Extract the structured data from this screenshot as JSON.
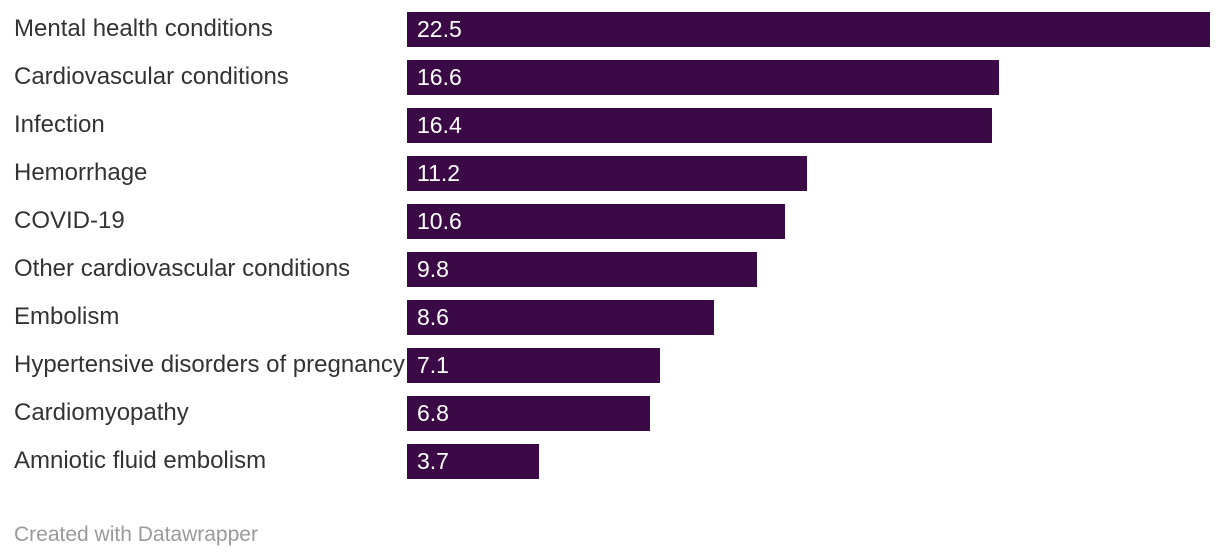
{
  "chart_data": {
    "type": "bar",
    "orientation": "horizontal",
    "title": "",
    "xlabel": "",
    "ylabel": "",
    "categories": [
      "Mental health conditions",
      "Cardiovascular conditions",
      "Infection",
      "Hemorrhage",
      "COVID-19",
      "Other cardiovascular conditions",
      "Embolism",
      "Hypertensive disorders of pregnancy",
      "Cardiomyopathy",
      "Amniotic fluid embolism"
    ],
    "values": [
      22.5,
      16.6,
      16.4,
      11.2,
      10.6,
      9.8,
      8.6,
      7.1,
      6.8,
      3.7
    ],
    "value_labels": [
      "22.5",
      "16.6",
      "16.4",
      "11.2",
      "10.6",
      "9.8",
      "8.6",
      "7.1",
      "6.8",
      "3.7"
    ],
    "xlim": [
      0,
      22.5
    ],
    "grid": false,
    "legend": false,
    "value_label_position": "inside-start",
    "colors": {
      "bar": "#3b0a46",
      "category_label": "#333333",
      "value_label": "#ffffff",
      "background": "#ffffff"
    }
  },
  "footer": {
    "credit": "Created with Datawrapper",
    "color": "#9a9a9a"
  }
}
